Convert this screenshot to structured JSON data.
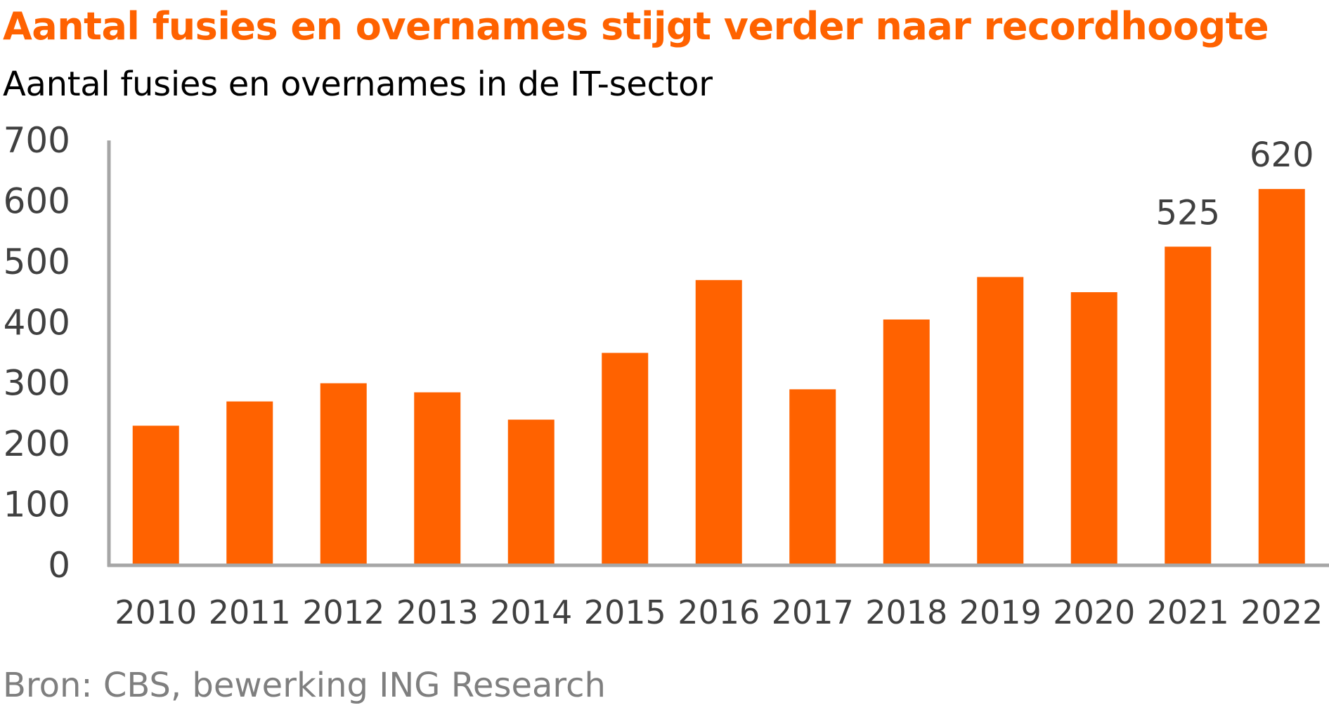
{
  "title": "Aantal fusies en overnames stijgt verder naar recordhoogte",
  "subtitle": "Aantal fusies en overnames in de IT-sector",
  "source": "Bron: CBS, bewerking ING Research",
  "colors": {
    "title": "#ff6200",
    "bar": "#ff6200",
    "axis": "#a6a6a6",
    "tick_text": "#404040",
    "source": "#7f7f7f"
  },
  "chart_data": {
    "type": "bar",
    "categories": [
      "2010",
      "2011",
      "2012",
      "2013",
      "2014",
      "2015",
      "2016",
      "2017",
      "2018",
      "2019",
      "2020",
      "2021",
      "2022"
    ],
    "values": [
      230,
      270,
      300,
      285,
      240,
      350,
      470,
      290,
      405,
      475,
      450,
      525,
      620
    ],
    "data_labels": [
      {
        "category": "2021",
        "label": "525"
      },
      {
        "category": "2022",
        "label": "620"
      }
    ],
    "ylim": [
      0,
      700
    ],
    "yticks": [
      "0",
      "100",
      "200",
      "300",
      "400",
      "500",
      "600",
      "700"
    ],
    "grid": false,
    "legend": "none"
  }
}
